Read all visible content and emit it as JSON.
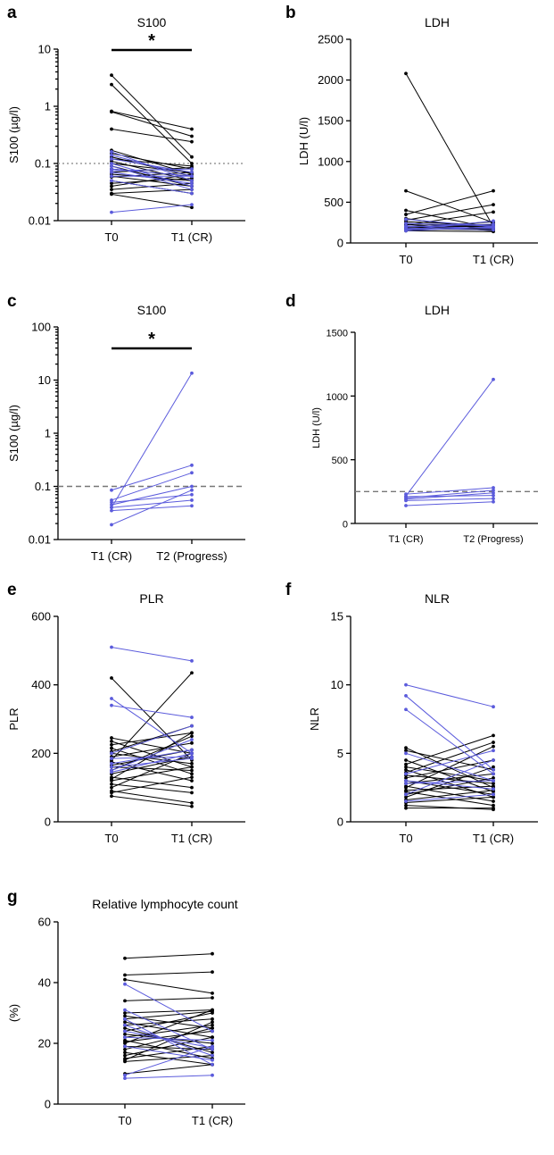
{
  "chart_data": [
    {
      "panel": "a",
      "title": "S100",
      "type": "line",
      "scale": "log",
      "ylabel": "S100 (µg/l)",
      "ylim": [
        0.01,
        10
      ],
      "yticks": [
        "0.01",
        "0.1",
        "1",
        "10"
      ],
      "categories": [
        "T0",
        "T1 (CR)"
      ],
      "reference_line": 0.1,
      "significance": "*",
      "series": [
        {
          "name": "black",
          "color": "#000000",
          "pairs": [
            [
              3.5,
              0.13
            ],
            [
              2.4,
              0.1
            ],
            [
              0.82,
              0.4
            ],
            [
              0.8,
              0.3
            ],
            [
              0.4,
              0.24
            ],
            [
              0.17,
              0.065
            ],
            [
              0.15,
              0.08
            ],
            [
              0.13,
              0.06
            ],
            [
              0.12,
              0.09
            ],
            [
              0.11,
              0.05
            ],
            [
              0.1,
              0.07
            ],
            [
              0.09,
              0.04
            ],
            [
              0.08,
              0.06
            ],
            [
              0.07,
              0.085
            ],
            [
              0.065,
              0.05
            ],
            [
              0.06,
              0.04
            ],
            [
              0.058,
              0.07
            ],
            [
              0.05,
              0.03
            ],
            [
              0.045,
              0.055
            ],
            [
              0.04,
              0.065
            ],
            [
              0.035,
              0.045
            ],
            [
              0.03,
              0.035
            ],
            [
              0.029,
              0.017
            ]
          ]
        },
        {
          "name": "blue",
          "color": "#5b5bdc",
          "pairs": [
            [
              0.16,
              0.05
            ],
            [
              0.14,
              0.06
            ],
            [
              0.12,
              0.07
            ],
            [
              0.1,
              0.04
            ],
            [
              0.09,
              0.035
            ],
            [
              0.08,
              0.06
            ],
            [
              0.075,
              0.08
            ],
            [
              0.07,
              0.045
            ],
            [
              0.06,
              0.06
            ],
            [
              0.05,
              0.03
            ],
            [
              0.014,
              0.019
            ]
          ]
        }
      ]
    },
    {
      "panel": "b",
      "title": "LDH",
      "type": "line",
      "scale": "linear",
      "ylabel": "LDH (U/l)",
      "ylim": [
        0,
        2500
      ],
      "yticks": [
        "0",
        "500",
        "1000",
        "1500",
        "2000",
        "2500"
      ],
      "categories": [
        "T0",
        "T1 (CR)"
      ],
      "series": [
        {
          "name": "black",
          "color": "#000000",
          "pairs": [
            [
              2080,
              200
            ],
            [
              640,
              250
            ],
            [
              400,
              180
            ],
            [
              350,
              640
            ],
            [
              300,
              160
            ],
            [
              280,
              470
            ],
            [
              260,
              220
            ],
            [
              240,
              190
            ],
            [
              230,
              150
            ],
            [
              220,
              380
            ],
            [
              210,
              200
            ],
            [
              200,
              170
            ],
            [
              190,
              260
            ],
            [
              180,
              220
            ],
            [
              175,
              160
            ],
            [
              170,
              230
            ],
            [
              160,
              180
            ],
            [
              150,
              140
            ]
          ]
        },
        {
          "name": "blue",
          "color": "#5b5bdc",
          "pairs": [
            [
              290,
              200
            ],
            [
              240,
              210
            ],
            [
              210,
              180
            ],
            [
              200,
              230
            ],
            [
              185,
              160
            ],
            [
              170,
              190
            ],
            [
              160,
              270
            ],
            [
              150,
              200
            ]
          ]
        }
      ]
    },
    {
      "panel": "c",
      "title": "S100",
      "type": "line",
      "scale": "log",
      "ylabel": "S100 (µg/l)",
      "ylim": [
        0.01,
        100
      ],
      "yticks": [
        "0.01",
        "0.1",
        "1",
        "10",
        "100"
      ],
      "categories": [
        "T1 (CR)",
        "T2 (Progress)"
      ],
      "reference_line": 0.1,
      "significance": "*",
      "series": [
        {
          "name": "blue",
          "color": "#5b5bdc",
          "pairs": [
            [
              0.04,
              13.5
            ],
            [
              0.085,
              0.25
            ],
            [
              0.055,
              0.18
            ],
            [
              0.045,
              0.1
            ],
            [
              0.05,
              0.07
            ],
            [
              0.04,
              0.055
            ],
            [
              0.035,
              0.043
            ],
            [
              0.019,
              0.085
            ]
          ]
        }
      ]
    },
    {
      "panel": "d",
      "title": "LDH",
      "type": "line",
      "scale": "linear",
      "ylabel": "LDH (U/l)",
      "ylim": [
        0,
        1500
      ],
      "yticks": [
        "0",
        "500",
        "1000",
        "1500"
      ],
      "categories": [
        "T1 (CR)",
        "T2 (Progress)"
      ],
      "reference_line": 250,
      "series": [
        {
          "name": "blue",
          "color": "#5b5bdc",
          "pairs": [
            [
              215,
              1130
            ],
            [
              230,
              280
            ],
            [
              200,
              260
            ],
            [
              190,
              240
            ],
            [
              210,
              220
            ],
            [
              180,
              195
            ],
            [
              140,
              170
            ]
          ]
        }
      ]
    },
    {
      "panel": "e",
      "title": "PLR",
      "type": "line",
      "scale": "linear",
      "ylabel": "PLR",
      "ylim": [
        0,
        600
      ],
      "yticks": [
        "0",
        "200",
        "400",
        "600"
      ],
      "categories": [
        "T0",
        "T1 (CR)"
      ],
      "series": [
        {
          "name": "black",
          "color": "#000000",
          "pairs": [
            [
              420,
              180
            ],
            [
              245,
              200
            ],
            [
              235,
              160
            ],
            [
              225,
              260
            ],
            [
              215,
              140
            ],
            [
              205,
              280
            ],
            [
              200,
              170
            ],
            [
              190,
              230
            ],
            [
              180,
              435
            ],
            [
              175,
              120
            ],
            [
              165,
              210
            ],
            [
              160,
              150
            ],
            [
              150,
              250
            ],
            [
              140,
              190
            ],
            [
              130,
              100
            ],
            [
              125,
              260
            ],
            [
              120,
              160
            ],
            [
              110,
              85
            ],
            [
              100,
              200
            ],
            [
              90,
              55
            ],
            [
              85,
              130
            ],
            [
              75,
              45
            ]
          ]
        },
        {
          "name": "blue",
          "color": "#5b5bdc",
          "pairs": [
            [
              510,
              470
            ],
            [
              360,
              200
            ],
            [
              340,
              305
            ],
            [
              200,
              280
            ],
            [
              185,
              190
            ],
            [
              170,
              210
            ],
            [
              160,
              185
            ],
            [
              150,
              240
            ],
            [
              145,
              200
            ]
          ]
        }
      ]
    },
    {
      "panel": "f",
      "title": "NLR",
      "type": "line",
      "scale": "linear",
      "ylabel": "NLR",
      "ylim": [
        0,
        15
      ],
      "yticks": [
        "0",
        "5",
        "10",
        "15"
      ],
      "categories": [
        "T0",
        "T1 (CR)"
      ],
      "series": [
        {
          "name": "black",
          "color": "#000000",
          "pairs": [
            [
              5.4,
              2.5
            ],
            [
              5.2,
              3.8
            ],
            [
              4.5,
              2.2
            ],
            [
              4.2,
              6.3
            ],
            [
              4.0,
              3.0
            ],
            [
              3.8,
              1.8
            ],
            [
              3.6,
              5.8
            ],
            [
              3.4,
              2.8
            ],
            [
              3.2,
              4.5
            ],
            [
              3.0,
              2.0
            ],
            [
              2.8,
              3.5
            ],
            [
              2.6,
              1.5
            ],
            [
              2.5,
              5.5
            ],
            [
              2.3,
              2.6
            ],
            [
              2.2,
              1.2
            ],
            [
              2.0,
              3.2
            ],
            [
              1.8,
              4.0
            ],
            [
              1.6,
              2.3
            ],
            [
              1.4,
              1.8
            ],
            [
              1.2,
              0.9
            ],
            [
              1.0,
              1.0
            ]
          ]
        },
        {
          "name": "blue",
          "color": "#5b5bdc",
          "pairs": [
            [
              10.0,
              8.4
            ],
            [
              9.2,
              3.8
            ],
            [
              8.2,
              3.5
            ],
            [
              5.0,
              3.0
            ],
            [
              3.5,
              5.2
            ],
            [
              3.0,
              2.4
            ],
            [
              2.8,
              3.0
            ],
            [
              2.0,
              4.5
            ],
            [
              1.5,
              2.0
            ]
          ]
        }
      ]
    },
    {
      "panel": "g",
      "title": "Relative lymphocyte count",
      "type": "line",
      "scale": "linear",
      "ylabel": "(%)",
      "ylim": [
        0,
        60
      ],
      "yticks": [
        "0",
        "20",
        "40",
        "60"
      ],
      "categories": [
        "T0",
        "T1 (CR)"
      ],
      "series": [
        {
          "name": "black",
          "color": "#000000",
          "pairs": [
            [
              48,
              49.5
            ],
            [
              42.5,
              43.5
            ],
            [
              41,
              36.5
            ],
            [
              34,
              35
            ],
            [
              30,
              31
            ],
            [
              29,
              25
            ],
            [
              28,
              30.5
            ],
            [
              27,
              22
            ],
            [
              26,
              28
            ],
            [
              25,
              17
            ],
            [
              24,
              30
            ],
            [
              23,
              20
            ],
            [
              22,
              26
            ],
            [
              21,
              15
            ],
            [
              20.5,
              24
            ],
            [
              20,
              31
            ],
            [
              19,
              18
            ],
            [
              18,
              25
            ],
            [
              17,
              13
            ],
            [
              16,
              22
            ],
            [
              15,
              19
            ],
            [
              14.5,
              27
            ],
            [
              14,
              16
            ],
            [
              10,
              13
            ]
          ]
        },
        {
          "name": "blue",
          "color": "#5b5bdc",
          "pairs": [
            [
              39.5,
              24
            ],
            [
              31,
              18
            ],
            [
              28,
              13
            ],
            [
              26,
              16
            ],
            [
              24,
              18.5
            ],
            [
              22,
              21
            ],
            [
              19,
              14.5
            ],
            [
              9.5,
              19
            ],
            [
              8.5,
              9.5
            ]
          ]
        }
      ]
    }
  ]
}
